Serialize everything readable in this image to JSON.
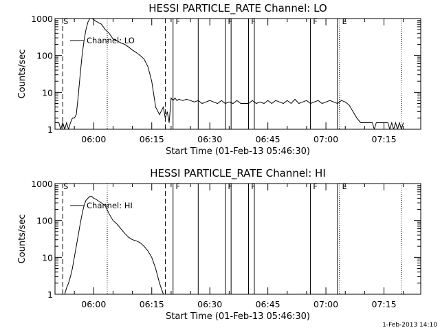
{
  "footer_timestamp": "1-Feb-2013 14:10",
  "chart_data": [
    {
      "type": "line",
      "title": "HESSI PARTICLE_RATE Channel: LO",
      "xlabel": "Start Time (01-Feb-13 05:46:30)",
      "ylabel": "Counts/sec",
      "y_scale": "log",
      "ylim": [
        1,
        1000
      ],
      "xlim": [
        "05:50:00",
        "07:24:30"
      ],
      "x_ticks": [
        "06:00",
        "06:15",
        "06:30",
        "06:45",
        "07:00",
        "07:15"
      ],
      "y_ticks": [
        "1",
        "10",
        "100",
        "1000"
      ],
      "legend": {
        "label": "Channel: LO",
        "position": "top-left"
      },
      "series": [
        {
          "name": "Channel: LO",
          "x": [
            "05:50:00",
            "05:51:00",
            "05:51:30",
            "05:52:00",
            "05:52:30",
            "05:53:00",
            "05:53:30",
            "05:54:00",
            "05:54:30",
            "05:55:00",
            "05:55:30",
            "05:56:00",
            "05:56:30",
            "05:57:00",
            "05:57:30",
            "05:58:00",
            "05:58:30",
            "05:59:00",
            "05:59:30",
            "06:00:00",
            "06:00:30",
            "06:01:00",
            "06:02:00",
            "06:03:00",
            "06:04:00",
            "06:05:00",
            "06:06:00",
            "06:07:00",
            "06:08:00",
            "06:09:00",
            "06:10:00",
            "06:11:00",
            "06:12:00",
            "06:13:00",
            "06:14:00",
            "06:15:00",
            "06:16:00",
            "06:17:00",
            "06:18:00",
            "06:18:30",
            "06:19:00",
            "06:19:30",
            "06:20:00",
            "06:20:30",
            "06:21:00",
            "06:21:30",
            "06:22:00",
            "06:23:00",
            "06:24:00",
            "06:25:00",
            "06:26:00",
            "06:27:00",
            "06:28:00",
            "06:29:00",
            "06:30:00",
            "06:31:00",
            "06:32:00",
            "06:33:00",
            "06:34:00",
            "06:35:00",
            "06:36:00",
            "06:37:00",
            "06:38:00",
            "06:39:00",
            "06:40:00",
            "06:41:00",
            "06:42:00",
            "06:43:00",
            "06:44:00",
            "06:45:00",
            "06:46:00",
            "06:47:00",
            "06:48:00",
            "06:49:00",
            "06:50:00",
            "06:51:00",
            "06:52:00",
            "06:53:00",
            "06:54:00",
            "06:55:00",
            "06:56:00",
            "06:57:00",
            "06:58:00",
            "06:59:00",
            "07:00:00",
            "07:01:00",
            "07:02:00",
            "07:03:00",
            "07:04:00",
            "07:05:00",
            "07:06:00",
            "07:07:00",
            "07:08:00",
            "07:09:00",
            "07:10:00",
            "07:11:00",
            "07:12:00",
            "07:12:30",
            "07:13:00",
            "07:14:00",
            "07:15:00",
            "07:16:00",
            "07:16:30",
            "07:17:00",
            "07:17:30",
            "07:18:00",
            "07:18:30",
            "07:19:00",
            "07:19:30",
            "07:20:00"
          ],
          "values": [
            1.5,
            1.5,
            1,
            1.5,
            1,
            1.5,
            1,
            1.5,
            2,
            2,
            2.5,
            8,
            30,
            100,
            250,
            500,
            800,
            1000,
            1000,
            950,
            850,
            800,
            700,
            500,
            400,
            280,
            250,
            220,
            200,
            170,
            140,
            120,
            100,
            80,
            50,
            20,
            4,
            2.5,
            4,
            2,
            3,
            1.5,
            7,
            6,
            7,
            6,
            6.5,
            6,
            6.5,
            6,
            5.5,
            6,
            5,
            5.5,
            6,
            5.5,
            5,
            6,
            5,
            5.5,
            5,
            6,
            5,
            5,
            5,
            6,
            5,
            5.5,
            5,
            6,
            5,
            6,
            5.5,
            5,
            6,
            5,
            6.5,
            5,
            5.5,
            6,
            5,
            5.5,
            6,
            5,
            5.5,
            6,
            5.5,
            5,
            6,
            5.5,
            4.5,
            3,
            2,
            1.5,
            1.5,
            1.5,
            1.5,
            1,
            1.5,
            1.5,
            1.5,
            1.5,
            1,
            1.5,
            1,
            1.5,
            1,
            1.5,
            1,
            1.5
          ]
        }
      ],
      "markers": [
        {
          "label": "S",
          "x": "05:52:00",
          "style": "dashed"
        },
        {
          "label": "",
          "x": "06:03:30",
          "style": "dotted"
        },
        {
          "label": "",
          "x": "06:18:30",
          "style": "dashed"
        },
        {
          "label": "",
          "x": "06:20:30",
          "style": "solid"
        },
        {
          "label": "F",
          "x": "06:21:00",
          "style": "none"
        },
        {
          "label": "",
          "x": "06:27:00",
          "style": "solid"
        },
        {
          "label": "",
          "x": "06:34:00",
          "style": "solid"
        },
        {
          "label": "F",
          "x": "06:34:30",
          "style": "none"
        },
        {
          "label": "",
          "x": "06:35:30",
          "style": "solid"
        },
        {
          "label": "",
          "x": "06:40:00",
          "style": "solid"
        },
        {
          "label": "F",
          "x": "06:40:30",
          "style": "none"
        },
        {
          "label": "",
          "x": "06:41:30",
          "style": "solid"
        },
        {
          "label": "",
          "x": "06:56:00",
          "style": "solid"
        },
        {
          "label": "F",
          "x": "06:56:30",
          "style": "none"
        },
        {
          "label": "",
          "x": "07:03:00",
          "style": "solid"
        },
        {
          "label": "",
          "x": "07:03:30",
          "style": "dotted"
        },
        {
          "label": "E",
          "x": "07:04:00",
          "style": "none"
        },
        {
          "label": "",
          "x": "07:19:30",
          "style": "dotted"
        }
      ]
    },
    {
      "type": "line",
      "title": "HESSI PARTICLE_RATE Channel: HI",
      "xlabel": "Start Time (01-Feb-13 05:46:30)",
      "ylabel": "Counts/sec",
      "y_scale": "log",
      "ylim": [
        1,
        1000
      ],
      "xlim": [
        "05:50:00",
        "07:24:30"
      ],
      "x_ticks": [
        "06:00",
        "06:15",
        "06:30",
        "06:45",
        "07:00",
        "07:15"
      ],
      "y_ticks": [
        "1",
        "10",
        "100",
        "1000"
      ],
      "legend": {
        "label": "Channel: HI",
        "position": "top-left"
      },
      "series": [
        {
          "name": "Channel: HI",
          "x": [
            "05:52:30",
            "05:53:00",
            "05:53:30",
            "05:54:00",
            "05:54:30",
            "05:55:00",
            "05:55:30",
            "05:56:00",
            "05:56:30",
            "05:57:00",
            "05:57:30",
            "05:58:00",
            "05:58:30",
            "05:59:00",
            "05:59:30",
            "06:00:00",
            "06:00:30",
            "06:01:00",
            "06:02:00",
            "06:03:00",
            "06:04:00",
            "06:05:00",
            "06:06:00",
            "06:07:00",
            "06:08:00",
            "06:09:00",
            "06:10:00",
            "06:11:00",
            "06:12:00",
            "06:13:00",
            "06:14:00",
            "06:15:00",
            "06:16:00",
            "06:17:00",
            "06:18:00"
          ],
          "values": [
            1,
            1.5,
            2,
            3,
            5,
            10,
            20,
            40,
            80,
            150,
            250,
            350,
            400,
            450,
            450,
            400,
            380,
            350,
            300,
            250,
            150,
            100,
            80,
            60,
            45,
            35,
            30,
            28,
            25,
            20,
            15,
            10,
            5,
            2,
            1
          ]
        }
      ],
      "markers": [
        {
          "label": "S",
          "x": "05:52:00",
          "style": "dashed"
        },
        {
          "label": "",
          "x": "06:03:30",
          "style": "dotted"
        },
        {
          "label": "",
          "x": "06:18:30",
          "style": "dashed"
        },
        {
          "label": "",
          "x": "06:20:30",
          "style": "solid"
        },
        {
          "label": "F",
          "x": "06:21:00",
          "style": "none"
        },
        {
          "label": "",
          "x": "06:27:00",
          "style": "solid"
        },
        {
          "label": "",
          "x": "06:34:00",
          "style": "solid"
        },
        {
          "label": "F",
          "x": "06:34:30",
          "style": "none"
        },
        {
          "label": "",
          "x": "06:35:30",
          "style": "solid"
        },
        {
          "label": "",
          "x": "06:40:00",
          "style": "solid"
        },
        {
          "label": "F",
          "x": "06:40:30",
          "style": "none"
        },
        {
          "label": "",
          "x": "06:41:30",
          "style": "solid"
        },
        {
          "label": "",
          "x": "06:56:00",
          "style": "solid"
        },
        {
          "label": "F",
          "x": "06:56:30",
          "style": "none"
        },
        {
          "label": "",
          "x": "07:03:00",
          "style": "solid"
        },
        {
          "label": "",
          "x": "07:03:30",
          "style": "dotted"
        },
        {
          "label": "E",
          "x": "07:04:00",
          "style": "none"
        },
        {
          "label": "",
          "x": "07:19:30",
          "style": "dotted"
        }
      ]
    }
  ]
}
